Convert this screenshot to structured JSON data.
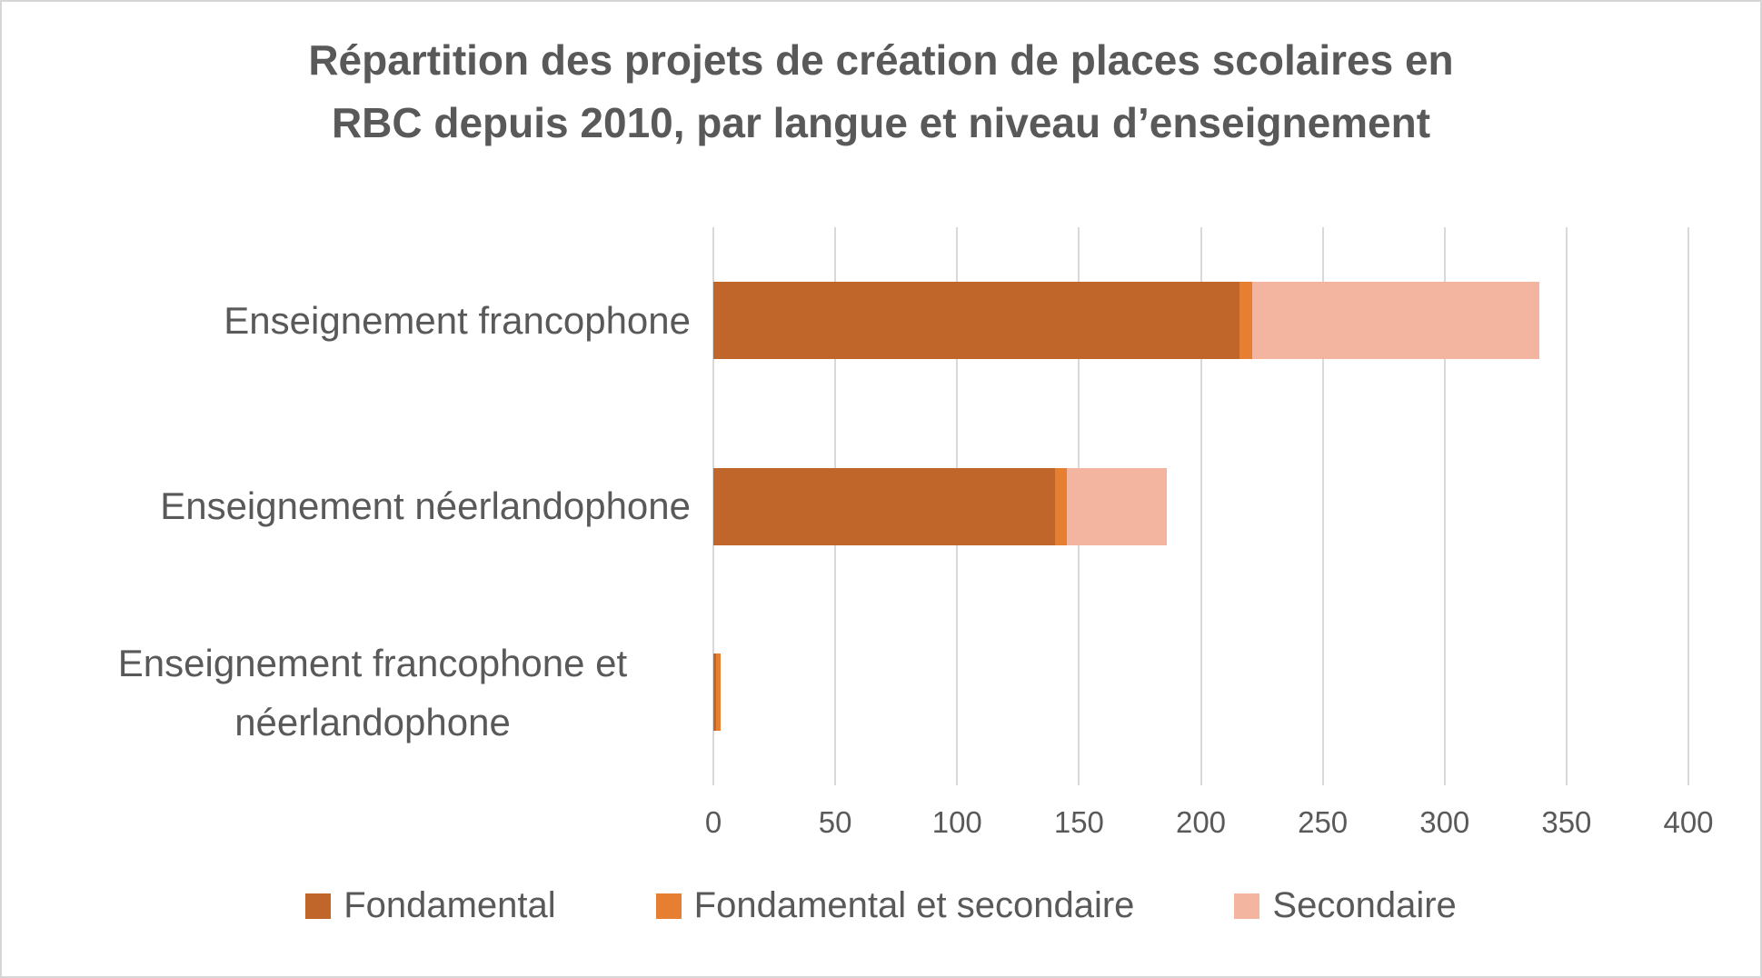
{
  "chart_data": {
    "type": "bar",
    "orientation": "horizontal",
    "stacked": true,
    "title": "Répartition des projets de création de places scolaires en RBC depuis 2010, par langue et niveau d’enseignement",
    "title_lines": [
      "Répartition des projets de création de places scolaires en",
      "RBC depuis 2010, par langue et niveau d’enseignement"
    ],
    "categories": [
      "Enseignement francophone",
      "Enseignement néerlandophone",
      "Enseignement francophone et néerlandophone"
    ],
    "series": [
      {
        "name": "Fondamental",
        "color": "#C1662B",
        "values": [
          216,
          140,
          1
        ]
      },
      {
        "name": "Fondamental et secondaire",
        "color": "#E67F31",
        "values": [
          5,
          5,
          2
        ]
      },
      {
        "name": "Secondaire",
        "color": "#F4B5A0",
        "values": [
          118,
          41,
          0
        ]
      }
    ],
    "totals": [
      339,
      186,
      3
    ],
    "x_ticks": [
      0,
      50,
      100,
      150,
      200,
      250,
      300,
      350,
      400
    ],
    "xlim": [
      0,
      400
    ],
    "grid": true,
    "legend_position": "bottom",
    "colors": {
      "text": "#595959",
      "gridline": "#D9D9D9",
      "background": "#FFFFFF",
      "frame_border": "#D6D6D6"
    }
  }
}
